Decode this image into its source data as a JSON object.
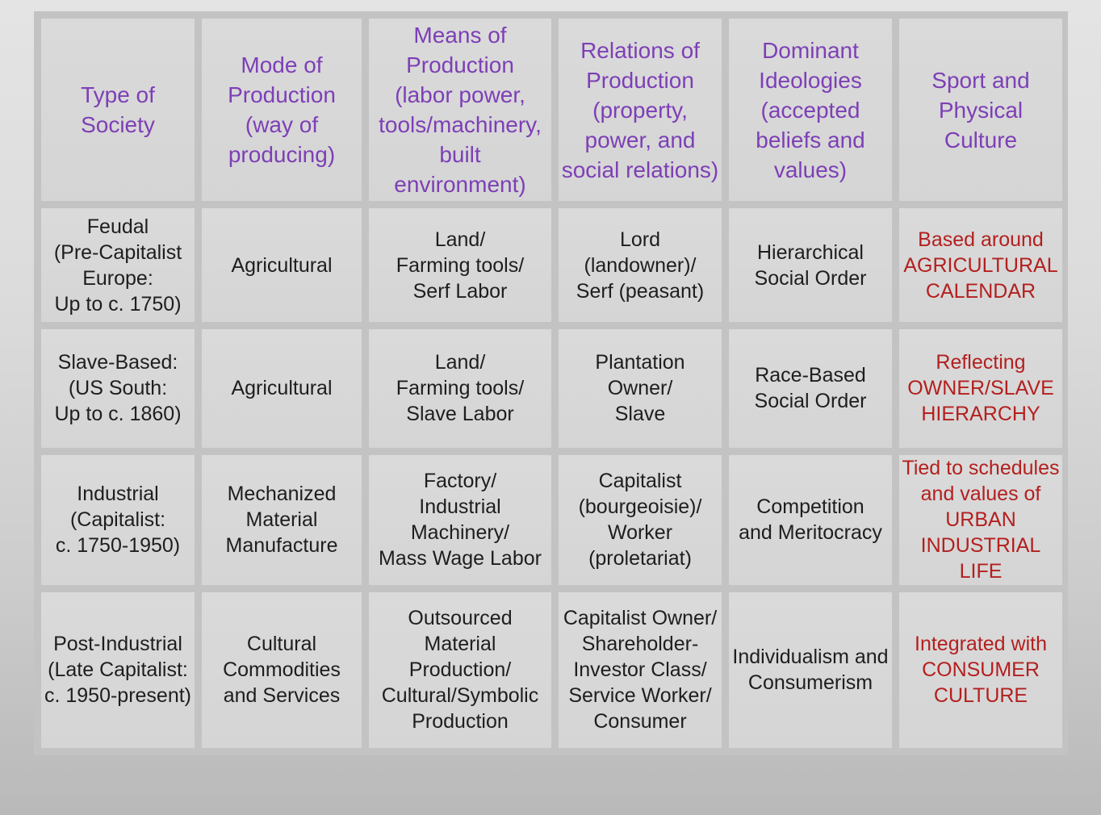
{
  "table": {
    "columns": [
      "Type of\nSociety",
      "Mode of\nProduction\n(way of\nproducing)",
      "Means of\nProduction\n(labor power,\ntools/machinery,\nbuilt environment)",
      "Relations of\nProduction\n(property,\npower, and\nsocial relations)",
      "Dominant\nIdeologies\n(accepted\nbeliefs and\nvalues)",
      "Sport and\nPhysical\nCulture"
    ],
    "rows": [
      {
        "type": "Feudal\n(Pre-Capitalist\nEurope:\nUp to c. 1750)",
        "mode": "Agricultural",
        "means": "Land/\nFarming tools/\nSerf Labor",
        "relations": "Lord\n(landowner)/\nSerf (peasant)",
        "ideologies": "Hierarchical\nSocial Order",
        "sport": "Based around\nAGRICULTURAL\nCALENDAR"
      },
      {
        "type": "Slave-Based:\n(US South:\nUp to c. 1860)",
        "mode": "Agricultural",
        "means": "Land/\nFarming tools/\nSlave Labor",
        "relations": "Plantation\nOwner/\nSlave",
        "ideologies": "Race-Based\nSocial Order",
        "sport": "Reflecting\nOWNER/SLAVE\nHIERARCHY"
      },
      {
        "type": "Industrial\n(Capitalist:\nc. 1750-1950)",
        "mode": "Mechanized\nMaterial\nManufacture",
        "means": "Factory/\nIndustrial\nMachinery/\nMass Wage Labor",
        "relations": "Capitalist\n(bourgeoisie)/\nWorker\n(proletariat)",
        "ideologies": "Competition\nand Meritocracy",
        "sport": "Tied to schedules\nand values of\nURBAN\nINDUSTRIAL LIFE"
      },
      {
        "type": "Post-Industrial\n(Late Capitalist:\nc. 1950-present)",
        "mode": "Cultural\nCommodities\nand Services",
        "means": "Outsourced Material\nProduction/\nCultural/Symbolic\nProduction",
        "relations": "Capitalist Owner/\nShareholder-\nInvestor Class/\nService Worker/\nConsumer",
        "ideologies": "Individualism and\nConsumerism",
        "sport": "Integrated with\nCONSUMER\nCULTURE"
      }
    ]
  }
}
